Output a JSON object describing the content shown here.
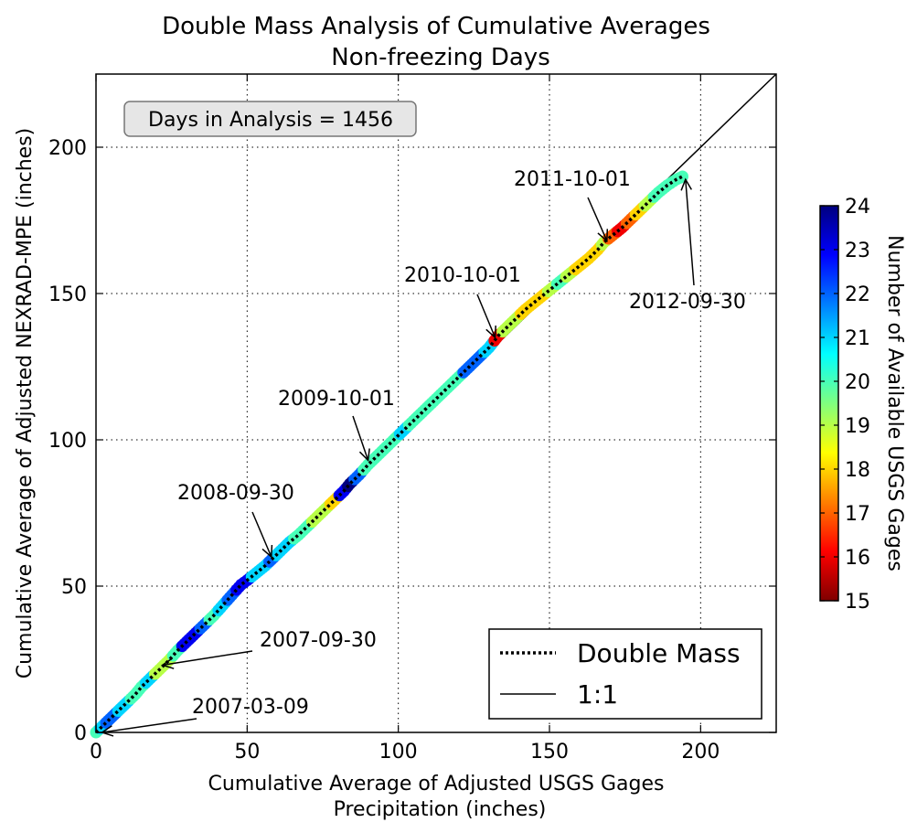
{
  "chart_data": {
    "type": "scatter",
    "title": "Double Mass Analysis of Cumulative Averages",
    "subtitle": "Non-freezing Days",
    "xlabel_line1": "Cumulative Average of Adjusted USGS Gages",
    "xlabel_line2": "Precipitation (inches)",
    "ylabel": "Cumulative Average of Adjusted NEXRAD-MPE (inches)",
    "xlim": [
      0,
      225
    ],
    "ylim": [
      0,
      225
    ],
    "x_ticks": [
      0,
      50,
      100,
      150,
      200
    ],
    "y_ticks": [
      0,
      50,
      100,
      150,
      200
    ],
    "x_tick_labels": [
      "0",
      "50",
      "100",
      "150",
      "200"
    ],
    "y_tick_labels": [
      "0",
      "50",
      "100",
      "150",
      "200"
    ],
    "grid": true,
    "info_box": "Days in Analysis = 1456",
    "legend_position": "lower-right",
    "legend": [
      {
        "label": "Double Mass",
        "style": "dotted"
      },
      {
        "label": "1:1",
        "style": "solid"
      }
    ],
    "colorbar": {
      "label": "Number of Available USGS Gages",
      "min": 15,
      "max": 24,
      "ticks": [
        "15",
        "16",
        "17",
        "18",
        "19",
        "20",
        "21",
        "22",
        "23",
        "24"
      ],
      "colormap": [
        "#7f0000",
        "#ff0000",
        "#ff7f00",
        "#ffff00",
        "#7fff7f",
        "#00ffff",
        "#007fff",
        "#0000ff",
        "#00007f"
      ]
    },
    "series": [
      {
        "name": "Double Mass",
        "points": [
          [
            0,
            0,
            20
          ],
          [
            2,
            2,
            21
          ],
          [
            4,
            4,
            22
          ],
          [
            6,
            6,
            22
          ],
          [
            8,
            8,
            21
          ],
          [
            10,
            10,
            21
          ],
          [
            13,
            13,
            20
          ],
          [
            15,
            15.5,
            20
          ],
          [
            18,
            18.5,
            21
          ],
          [
            21,
            21.5,
            19
          ],
          [
            24,
            24.5,
            19
          ],
          [
            27,
            28,
            20
          ],
          [
            30,
            31,
            23
          ],
          [
            33,
            34,
            23
          ],
          [
            36,
            37,
            22
          ],
          [
            39,
            40,
            20
          ],
          [
            42,
            43.5,
            21
          ],
          [
            45,
            47,
            22
          ],
          [
            48,
            50.5,
            23
          ],
          [
            50,
            52,
            23
          ],
          [
            53,
            54.5,
            21
          ],
          [
            56,
            57,
            21
          ],
          [
            58,
            59,
            22
          ],
          [
            61,
            62,
            21
          ],
          [
            64,
            65,
            21
          ],
          [
            67,
            67.5,
            20
          ],
          [
            70,
            70.5,
            20
          ],
          [
            73,
            73.5,
            19
          ],
          [
            76,
            76.5,
            19
          ],
          [
            79,
            79.5,
            18
          ],
          [
            82,
            82.5,
            23
          ],
          [
            84,
            85,
            24
          ],
          [
            87,
            88,
            22
          ],
          [
            90,
            91.5,
            20
          ],
          [
            93,
            94.5,
            20
          ],
          [
            96,
            97.5,
            20
          ],
          [
            99,
            100.5,
            20
          ],
          [
            102,
            103.5,
            21
          ],
          [
            105,
            106.5,
            20
          ],
          [
            108,
            109.5,
            20
          ],
          [
            111,
            112.5,
            20
          ],
          [
            114,
            115.5,
            20
          ],
          [
            117,
            118.5,
            20
          ],
          [
            120,
            121.5,
            20
          ],
          [
            123,
            124.5,
            22
          ],
          [
            125,
            126.5,
            22
          ],
          [
            127,
            128.5,
            22
          ],
          [
            130,
            131.5,
            21
          ],
          [
            133,
            135.5,
            16
          ],
          [
            136,
            138.5,
            19
          ],
          [
            139,
            141.5,
            19
          ],
          [
            142,
            144.5,
            18
          ],
          [
            145,
            147,
            18
          ],
          [
            148,
            149.5,
            18
          ],
          [
            151,
            152,
            19
          ],
          [
            154,
            154.5,
            20
          ],
          [
            157,
            157,
            19
          ],
          [
            160,
            159.5,
            18
          ],
          [
            163,
            162,
            18
          ],
          [
            166,
            165,
            18
          ],
          [
            168,
            167.5,
            19
          ],
          [
            171,
            170,
            17
          ],
          [
            174,
            172.5,
            16
          ],
          [
            177,
            175.5,
            17
          ],
          [
            180,
            178.5,
            18
          ],
          [
            183,
            181.5,
            19
          ],
          [
            186,
            184.5,
            20
          ],
          [
            189,
            187,
            20
          ],
          [
            192,
            189,
            20
          ],
          [
            194,
            190,
            20
          ]
        ]
      },
      {
        "name": "1:1",
        "points": [
          [
            0,
            0
          ],
          [
            225,
            225
          ]
        ]
      }
    ],
    "annotations": [
      {
        "label": "2007-03-09",
        "point": [
          2,
          0
        ]
      },
      {
        "label": "2007-09-30",
        "point": [
          22,
          23
        ]
      },
      {
        "label": "2008-09-30",
        "point": [
          58,
          60
        ]
      },
      {
        "label": "2009-10-01",
        "point": [
          90,
          93
        ]
      },
      {
        "label": "2010-10-01",
        "point": [
          132,
          135
        ]
      },
      {
        "label": "2011-10-01",
        "point": [
          169,
          168
        ]
      },
      {
        "label": "2012-09-30",
        "point": [
          195,
          189
        ]
      }
    ]
  }
}
